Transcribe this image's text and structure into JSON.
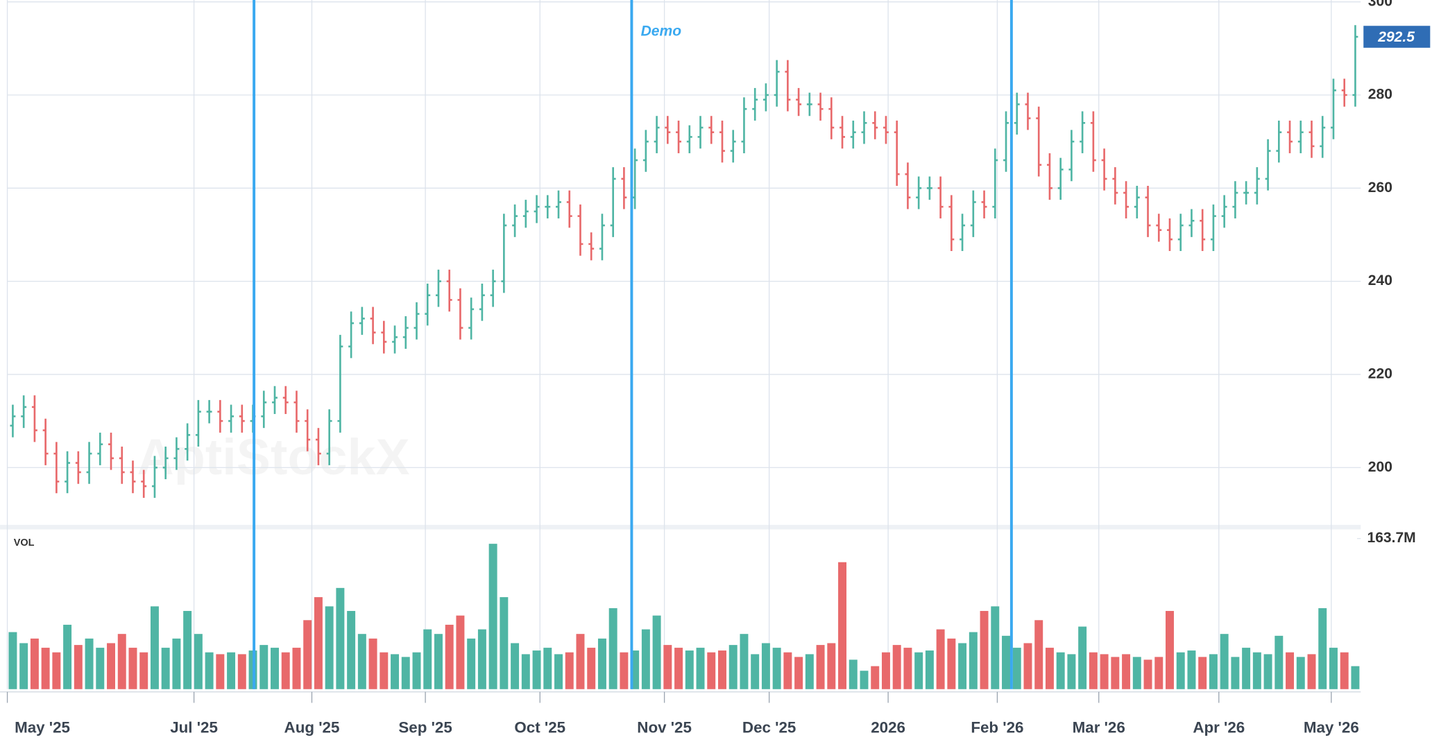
{
  "chart_data": {
    "type": "ohlc",
    "open": [
      209,
      211,
      213,
      208,
      203,
      197,
      201,
      199,
      203,
      205,
      202,
      199,
      197,
      196,
      200,
      202,
      204,
      207,
      212,
      212,
      210,
      211,
      210,
      211,
      214,
      215,
      214,
      210,
      206,
      203,
      210,
      226,
      231,
      232,
      229,
      227,
      228,
      230,
      233,
      237,
      240,
      236,
      230,
      234,
      237,
      240,
      252,
      254,
      255,
      256,
      256,
      257,
      254,
      248,
      247,
      252,
      262,
      258,
      266,
      270,
      273,
      272,
      270,
      271,
      273,
      272,
      268,
      270,
      277,
      279,
      280,
      285,
      279,
      278,
      278,
      277,
      273,
      271,
      272,
      274,
      273,
      272,
      263,
      258,
      260,
      260,
      256,
      249,
      252,
      257,
      256,
      266,
      274,
      278,
      275,
      265,
      260,
      264,
      270,
      274,
      266,
      262,
      259,
      256,
      258,
      252,
      251,
      249,
      252,
      253,
      249,
      254,
      256,
      259,
      259,
      262,
      268,
      272,
      270,
      272,
      269,
      273,
      281,
      280
    ],
    "high": [
      213.5,
      215.5,
      215.5,
      210.5,
      205.5,
      203.5,
      203.5,
      205.5,
      207.5,
      207.5,
      204.5,
      201.5,
      199.5,
      202.5,
      204.5,
      206.5,
      209.5,
      214.5,
      214.5,
      214.5,
      213.5,
      213.5,
      213.5,
      216.5,
      217.5,
      217.5,
      216.5,
      212.5,
      208.5,
      212.5,
      228.5,
      233.5,
      234.5,
      234.5,
      231.5,
      230.5,
      232.5,
      235.5,
      239.5,
      242.5,
      242.5,
      238.5,
      236.5,
      239.5,
      242.5,
      254.5,
      256.5,
      257.5,
      258.5,
      258.5,
      259.5,
      259.5,
      256.5,
      250.5,
      254.5,
      264.5,
      264.5,
      268.5,
      272.5,
      275.5,
      275.5,
      274.5,
      273.5,
      275.5,
      275.5,
      274.5,
      272.5,
      279.5,
      281.5,
      282.5,
      287.5,
      287.5,
      281.5,
      280.5,
      280.5,
      279.5,
      275.5,
      274.5,
      276.5,
      276.5,
      275.5,
      274.5,
      265.5,
      262.5,
      262.5,
      262.5,
      258.5,
      254.5,
      259.5,
      259.5,
      268.5,
      276.5,
      280.5,
      280.5,
      277.5,
      267.5,
      266.5,
      272.5,
      276.5,
      276.5,
      268.5,
      264.5,
      261.5,
      260.5,
      260.5,
      254.5,
      253.5,
      254.5,
      255.5,
      255.5,
      256.5,
      258.5,
      261.5,
      261.5,
      264.5,
      270.5,
      274.5,
      274.5,
      274.5,
      274.5,
      275.5,
      283.5,
      283.5,
      295
    ],
    "low": [
      206.5,
      208.5,
      205.5,
      200.5,
      194.5,
      194.5,
      196.5,
      196.5,
      200.5,
      199.5,
      196.5,
      194.5,
      193.5,
      193.5,
      197.5,
      199.5,
      201.5,
      204.5,
      209.5,
      207.5,
      207.5,
      207.5,
      207.5,
      208.5,
      211.5,
      211.5,
      207.5,
      203.5,
      200.5,
      200.5,
      207.5,
      223.5,
      228.5,
      226.5,
      224.5,
      224.5,
      225.5,
      227.5,
      230.5,
      234.5,
      233.5,
      227.5,
      227.5,
      231.5,
      234.5,
      237.5,
      249.5,
      251.5,
      252.5,
      253.5,
      253.5,
      251.5,
      245.5,
      244.5,
      244.5,
      249.5,
      255.5,
      255.5,
      263.5,
      267.5,
      269.5,
      267.5,
      267.5,
      268.5,
      269.5,
      265.5,
      265.5,
      267.5,
      274.5,
      276.5,
      277.5,
      276.5,
      275.5,
      275.5,
      274.5,
      270.5,
      268.5,
      268.5,
      269.5,
      270.5,
      269.5,
      260.5,
      255.5,
      255.5,
      257.5,
      253.5,
      246.5,
      246.5,
      249.5,
      253.5,
      253.5,
      263.5,
      271.5,
      272.5,
      262.5,
      257.5,
      257.5,
      261.5,
      267.5,
      263.5,
      259.5,
      256.5,
      253.5,
      253.5,
      249.5,
      248.5,
      246.5,
      246.5,
      249.5,
      246.5,
      246.5,
      251.5,
      253.5,
      256.5,
      256.5,
      259.5,
      265.5,
      267.5,
      267.5,
      266.5,
      266.5,
      270.5,
      277.5,
      277.5
    ],
    "close": [
      211,
      213,
      208,
      203,
      197,
      201,
      199,
      203,
      205,
      202,
      199,
      197,
      196,
      200,
      202,
      204,
      207,
      212,
      212,
      210,
      211,
      210,
      211,
      214,
      215,
      214,
      210,
      206,
      203,
      210,
      226,
      231,
      232,
      229,
      227,
      228,
      230,
      233,
      237,
      240,
      236,
      230,
      234,
      237,
      240,
      252,
      254,
      255,
      256,
      256,
      257,
      254,
      248,
      247,
      252,
      262,
      258,
      266,
      270,
      273,
      272,
      270,
      271,
      273,
      272,
      268,
      270,
      277,
      279,
      280,
      285,
      279,
      278,
      278,
      277,
      273,
      271,
      272,
      274,
      273,
      272,
      263,
      258,
      260,
      260,
      256,
      249,
      252,
      257,
      256,
      266,
      274,
      278,
      275,
      265,
      260,
      264,
      270,
      274,
      266,
      262,
      259,
      256,
      258,
      252,
      251,
      249,
      252,
      253,
      249,
      254,
      256,
      259,
      259,
      262,
      268,
      272,
      270,
      272,
      269,
      273,
      281,
      280,
      292.5
    ],
    "volume": [
      62,
      50,
      55,
      45,
      40,
      70,
      48,
      55,
      45,
      50,
      60,
      45,
      40,
      90,
      45,
      55,
      85,
      60,
      40,
      38,
      40,
      38,
      42,
      48,
      45,
      40,
      45,
      75,
      100,
      90,
      110,
      85,
      60,
      55,
      40,
      38,
      35,
      40,
      65,
      60,
      70,
      80,
      55,
      65,
      158,
      100,
      50,
      38,
      42,
      45,
      38,
      40,
      60,
      45,
      55,
      88,
      40,
      42,
      65,
      80,
      48,
      45,
      42,
      45,
      40,
      42,
      48,
      60,
      38,
      50,
      45,
      40,
      35,
      38,
      48,
      50,
      138,
      32,
      20,
      25,
      40,
      48,
      45,
      40,
      42,
      65,
      55,
      50,
      62,
      85,
      90,
      58,
      45,
      50,
      75,
      45,
      40,
      38,
      68,
      40,
      38,
      35,
      38,
      35,
      32,
      35,
      85,
      40,
      42,
      35,
      38,
      60,
      35,
      45,
      40,
      38,
      58,
      40,
      35,
      38,
      88,
      45,
      40,
      25
    ],
    "up_color": "#4fb5a4",
    "down_color": "#e8696b",
    "xlim": [
      0,
      124
    ],
    "xticks": [
      {
        "value": 0,
        "label": "May '25"
      },
      {
        "value": 17.1,
        "label": "Jul '25"
      },
      {
        "value": 27.9,
        "label": "Aug '25"
      },
      {
        "value": 38.3,
        "label": "Sep '25"
      },
      {
        "value": 48.8,
        "label": "Oct '25"
      },
      {
        "value": 60.2,
        "label": "Nov '25"
      },
      {
        "value": 69.8,
        "label": "Dec '25"
      },
      {
        "value": 80.7,
        "label": "2026"
      },
      {
        "value": 90.7,
        "label": "Feb '26"
      },
      {
        "value": 100,
        "label": "Mar '26"
      },
      {
        "value": 111,
        "label": "Apr '26"
      },
      {
        "value": 121.3,
        "label": "May '26"
      }
    ],
    "ylim": [
      187.7,
      300.4
    ],
    "yticks": [
      200,
      220,
      240,
      260,
      280,
      300
    ],
    "vol_label": "VOL",
    "vol_ylim": [
      0,
      163.7
    ],
    "vol_yticks": [
      {
        "value": 163.7,
        "label": "163.7M"
      }
    ],
    "markers": [
      {
        "x": 22.6
      },
      {
        "x": 57.2,
        "label": "Demo"
      },
      {
        "x": 92.0
      }
    ],
    "marker_color": "#3aa9f0",
    "badge_color": "#2f6db5",
    "watermark": "AptiStockX",
    "grid": true
  }
}
